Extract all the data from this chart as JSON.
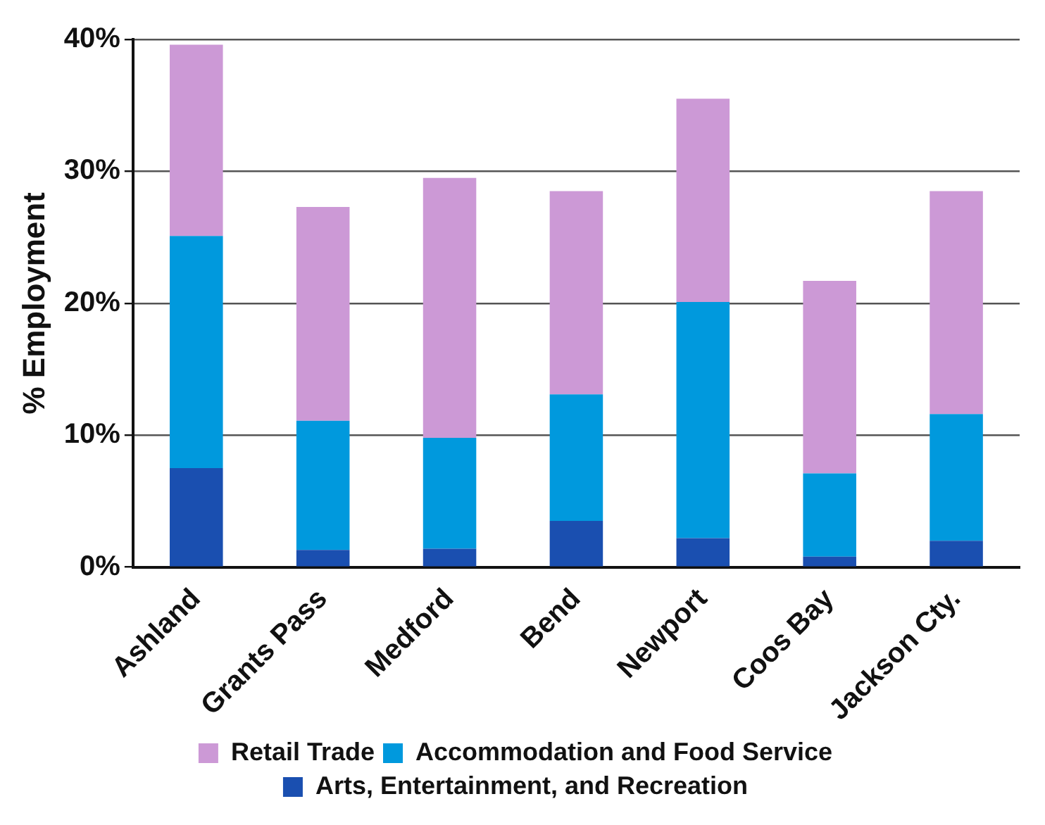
{
  "chart_data": {
    "type": "bar",
    "stacked": true,
    "ylabel": "% Employment",
    "categories": [
      "Ashland",
      "Grants Pass",
      "Medford",
      "Bend",
      "Newport",
      "Coos Bay",
      "Jackson Cty."
    ],
    "series": [
      {
        "name": "Arts, Entertainment, and Recreation",
        "color": "#1a4fb0",
        "values": [
          7.5,
          1.3,
          1.4,
          3.5,
          2.2,
          0.8,
          2.0
        ]
      },
      {
        "name": "Accommodation and Food Service",
        "color": "#0099dd",
        "values": [
          17.6,
          9.8,
          8.4,
          9.6,
          17.9,
          6.3,
          9.6
        ]
      },
      {
        "name": "Retail Trade",
        "color": "#cc99d6",
        "values": [
          14.5,
          16.2,
          19.7,
          15.4,
          15.4,
          14.6,
          16.9
        ]
      }
    ],
    "ylim": [
      0,
      40
    ],
    "yticks": [
      {
        "value": 0,
        "label": "0%"
      },
      {
        "value": 10,
        "label": "10%"
      },
      {
        "value": 20,
        "label": "20%"
      },
      {
        "value": 30,
        "label": "30%"
      },
      {
        "value": 40,
        "label": "40%"
      }
    ],
    "grid": "y",
    "legend": "bottom"
  }
}
